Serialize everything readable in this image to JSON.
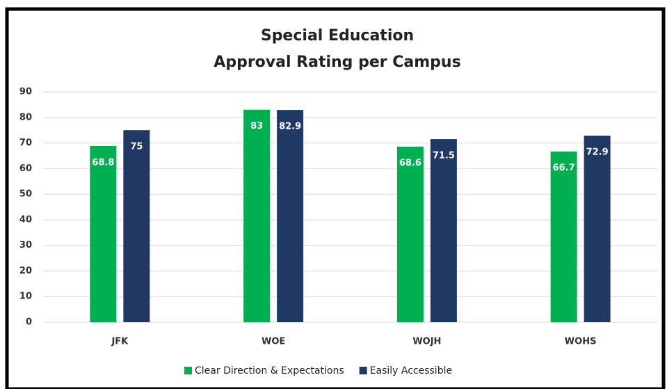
{
  "chart_data": {
    "type": "bar",
    "title": [
      "Special Education",
      "Approval Rating per Campus"
    ],
    "categories": [
      "JFK",
      "WOE",
      "WOJH",
      "WOHS"
    ],
    "series": [
      {
        "name": "Clear Direction & Expectations",
        "color": "#00b050",
        "values": [
          68.8,
          83,
          68.6,
          66.7
        ]
      },
      {
        "name": "Easily Accessible",
        "color": "#1f3864",
        "values": [
          75,
          82.9,
          71.5,
          72.9
        ]
      }
    ],
    "ylim": [
      0,
      90
    ],
    "yticks": [
      0,
      10,
      20,
      30,
      40,
      50,
      60,
      70,
      80,
      90
    ],
    "grid": true,
    "legend": "bottom"
  }
}
